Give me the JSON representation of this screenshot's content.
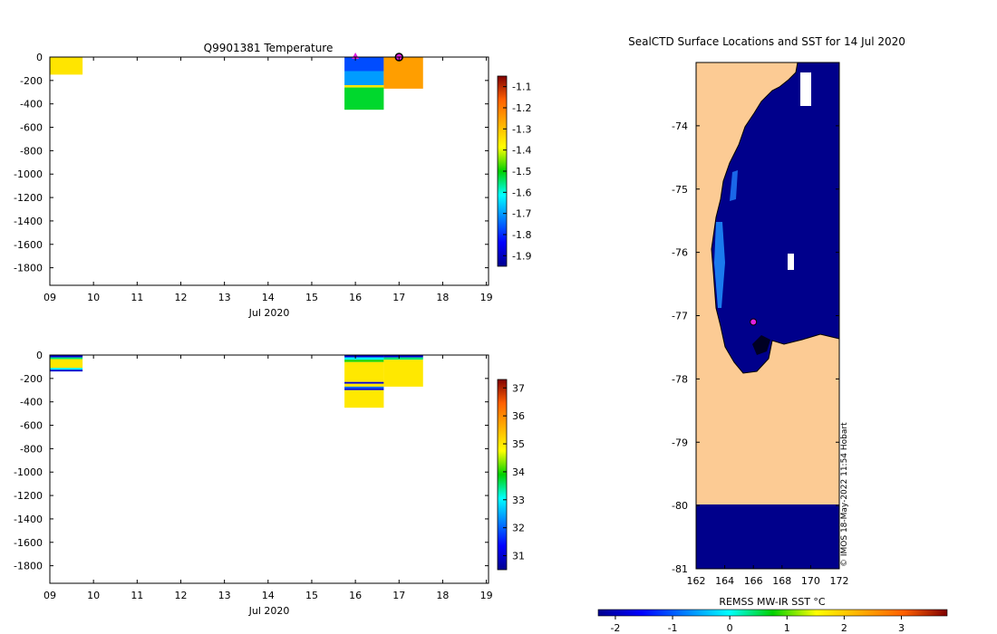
{
  "chart_data": [
    {
      "type": "heatmap",
      "title": "Q9901381  Temperature",
      "xlabel": "Jul 2020",
      "ylabel": "",
      "x_ticks": [
        "09",
        "10",
        "11",
        "12",
        "13",
        "14",
        "15",
        "16",
        "17",
        "18",
        "19"
      ],
      "y_ticks": [
        "0",
        "-200",
        "-400",
        "-600",
        "-800",
        "-1000",
        "-1200",
        "-1400",
        "-1600",
        "-1800"
      ],
      "xlim": [
        9,
        19.05
      ],
      "ylim": [
        -1950,
        0
      ],
      "colorbar": {
        "range": [
          -1.95,
          -1.05
        ],
        "ticks": [
          "-1.1",
          "-1.2",
          "-1.3",
          "-1.4",
          "-1.5",
          "-1.6",
          "-1.7",
          "-1.8",
          "-1.9"
        ],
        "values": [
          -1.1,
          -1.2,
          -1.3,
          -1.4,
          -1.5,
          -1.6,
          -1.7,
          -1.8,
          -1.9
        ]
      },
      "profiles": [
        {
          "day": 9.0,
          "end": 9.75,
          "segments": [
            {
              "top": 0,
              "bottom": -150,
              "value": -1.35
            }
          ]
        },
        {
          "day": 15.75,
          "end": 16.65,
          "segments": [
            {
              "top": 0,
              "bottom": -120,
              "value": -1.77
            },
            {
              "top": -120,
              "bottom": -240,
              "value": -1.7
            },
            {
              "top": -240,
              "bottom": -260,
              "value": -1.35
            },
            {
              "top": -260,
              "bottom": -450,
              "value": -1.52
            }
          ]
        },
        {
          "day": 16.65,
          "end": 17.55,
          "segments": [
            {
              "top": 0,
              "bottom": -270,
              "value": -1.25
            }
          ]
        }
      ],
      "markers": [
        {
          "day": 16.0,
          "depth": 0,
          "shape": "triangle",
          "color": "#e020e0"
        },
        {
          "day": 17.0,
          "depth": 0,
          "shape": "circle",
          "color": "#e020e0"
        }
      ]
    },
    {
      "type": "heatmap",
      "title": "",
      "xlabel": "Jul 2020",
      "ylabel": "",
      "x_ticks": [
        "09",
        "10",
        "11",
        "12",
        "13",
        "14",
        "15",
        "16",
        "17",
        "18",
        "19"
      ],
      "y_ticks": [
        "0",
        "-200",
        "-400",
        "-600",
        "-800",
        "-1000",
        "-1200",
        "-1400",
        "-1600",
        "-1800"
      ],
      "xlim": [
        9,
        19.05
      ],
      "ylim": [
        -1950,
        0
      ],
      "colorbar": {
        "range": [
          30.5,
          37.3
        ],
        "ticks": [
          "37",
          "36",
          "35",
          "34",
          "33",
          "32",
          "31"
        ],
        "values": [
          37,
          36,
          35,
          34,
          33,
          32,
          31
        ]
      },
      "profiles": [
        {
          "day": 9.0,
          "end": 9.75,
          "segments": [
            {
              "top": 0,
              "bottom": -20,
              "value": 31.0
            },
            {
              "top": -20,
              "bottom": -35,
              "value": 33.5
            },
            {
              "top": -35,
              "bottom": -110,
              "value": 35.0
            },
            {
              "top": -110,
              "bottom": -125,
              "value": 33.0
            },
            {
              "top": -125,
              "bottom": -140,
              "value": 31.0
            }
          ]
        },
        {
          "day": 15.75,
          "end": 16.65,
          "segments": [
            {
              "top": 0,
              "bottom": -20,
              "value": 31.0
            },
            {
              "top": -20,
              "bottom": -40,
              "value": 33.0
            },
            {
              "top": -40,
              "bottom": -60,
              "value": 34.0
            },
            {
              "top": -60,
              "bottom": -230,
              "value": 35.0
            },
            {
              "top": -230,
              "bottom": -245,
              "value": 31.0
            },
            {
              "top": -245,
              "bottom": -270,
              "value": 35.0
            },
            {
              "top": -270,
              "bottom": -285,
              "value": 32.0
            },
            {
              "top": -285,
              "bottom": -300,
              "value": 31.0
            },
            {
              "top": -300,
              "bottom": -450,
              "value": 35.0
            }
          ]
        },
        {
          "day": 16.65,
          "end": 17.55,
          "segments": [
            {
              "top": 0,
              "bottom": -20,
              "value": 31.0
            },
            {
              "top": -20,
              "bottom": -40,
              "value": 33.5
            },
            {
              "top": -40,
              "bottom": -270,
              "value": 35.0
            }
          ]
        }
      ],
      "markers": []
    },
    {
      "type": "heatmap",
      "title": "SealCTD Surface Locations and SST for 14 Jul 2020",
      "xlabel": "",
      "ylabel": "",
      "x_ticks": [
        "162",
        "164",
        "166",
        "168",
        "170",
        "172"
      ],
      "x_values": [
        162,
        164,
        166,
        168,
        170,
        172
      ],
      "y_ticks": [
        "-74",
        "-75",
        "-76",
        "-77",
        "-78",
        "-79",
        "-80",
        "-81"
      ],
      "y_values": [
        -74,
        -75,
        -76,
        -77,
        -78,
        -79,
        -80,
        -81
      ],
      "xlim": [
        162,
        172
      ],
      "ylim": [
        -81,
        -73
      ],
      "land_color": "#fccb94",
      "sea_color": "#00008b",
      "colorbar": {
        "label": "REMSS MW-IR SST °C",
        "range": [
          -2.3,
          3.8
        ],
        "ticks": [
          "-2",
          "-1",
          "0",
          "1",
          "2",
          "3"
        ],
        "values": [
          -2,
          -1,
          0,
          1,
          2,
          3
        ]
      },
      "watermark": "© IMOS 18-May-2022 11:54 Hobart",
      "marker": {
        "lon": 166.0,
        "lat": -77.1,
        "color": "#e020e0"
      }
    }
  ]
}
